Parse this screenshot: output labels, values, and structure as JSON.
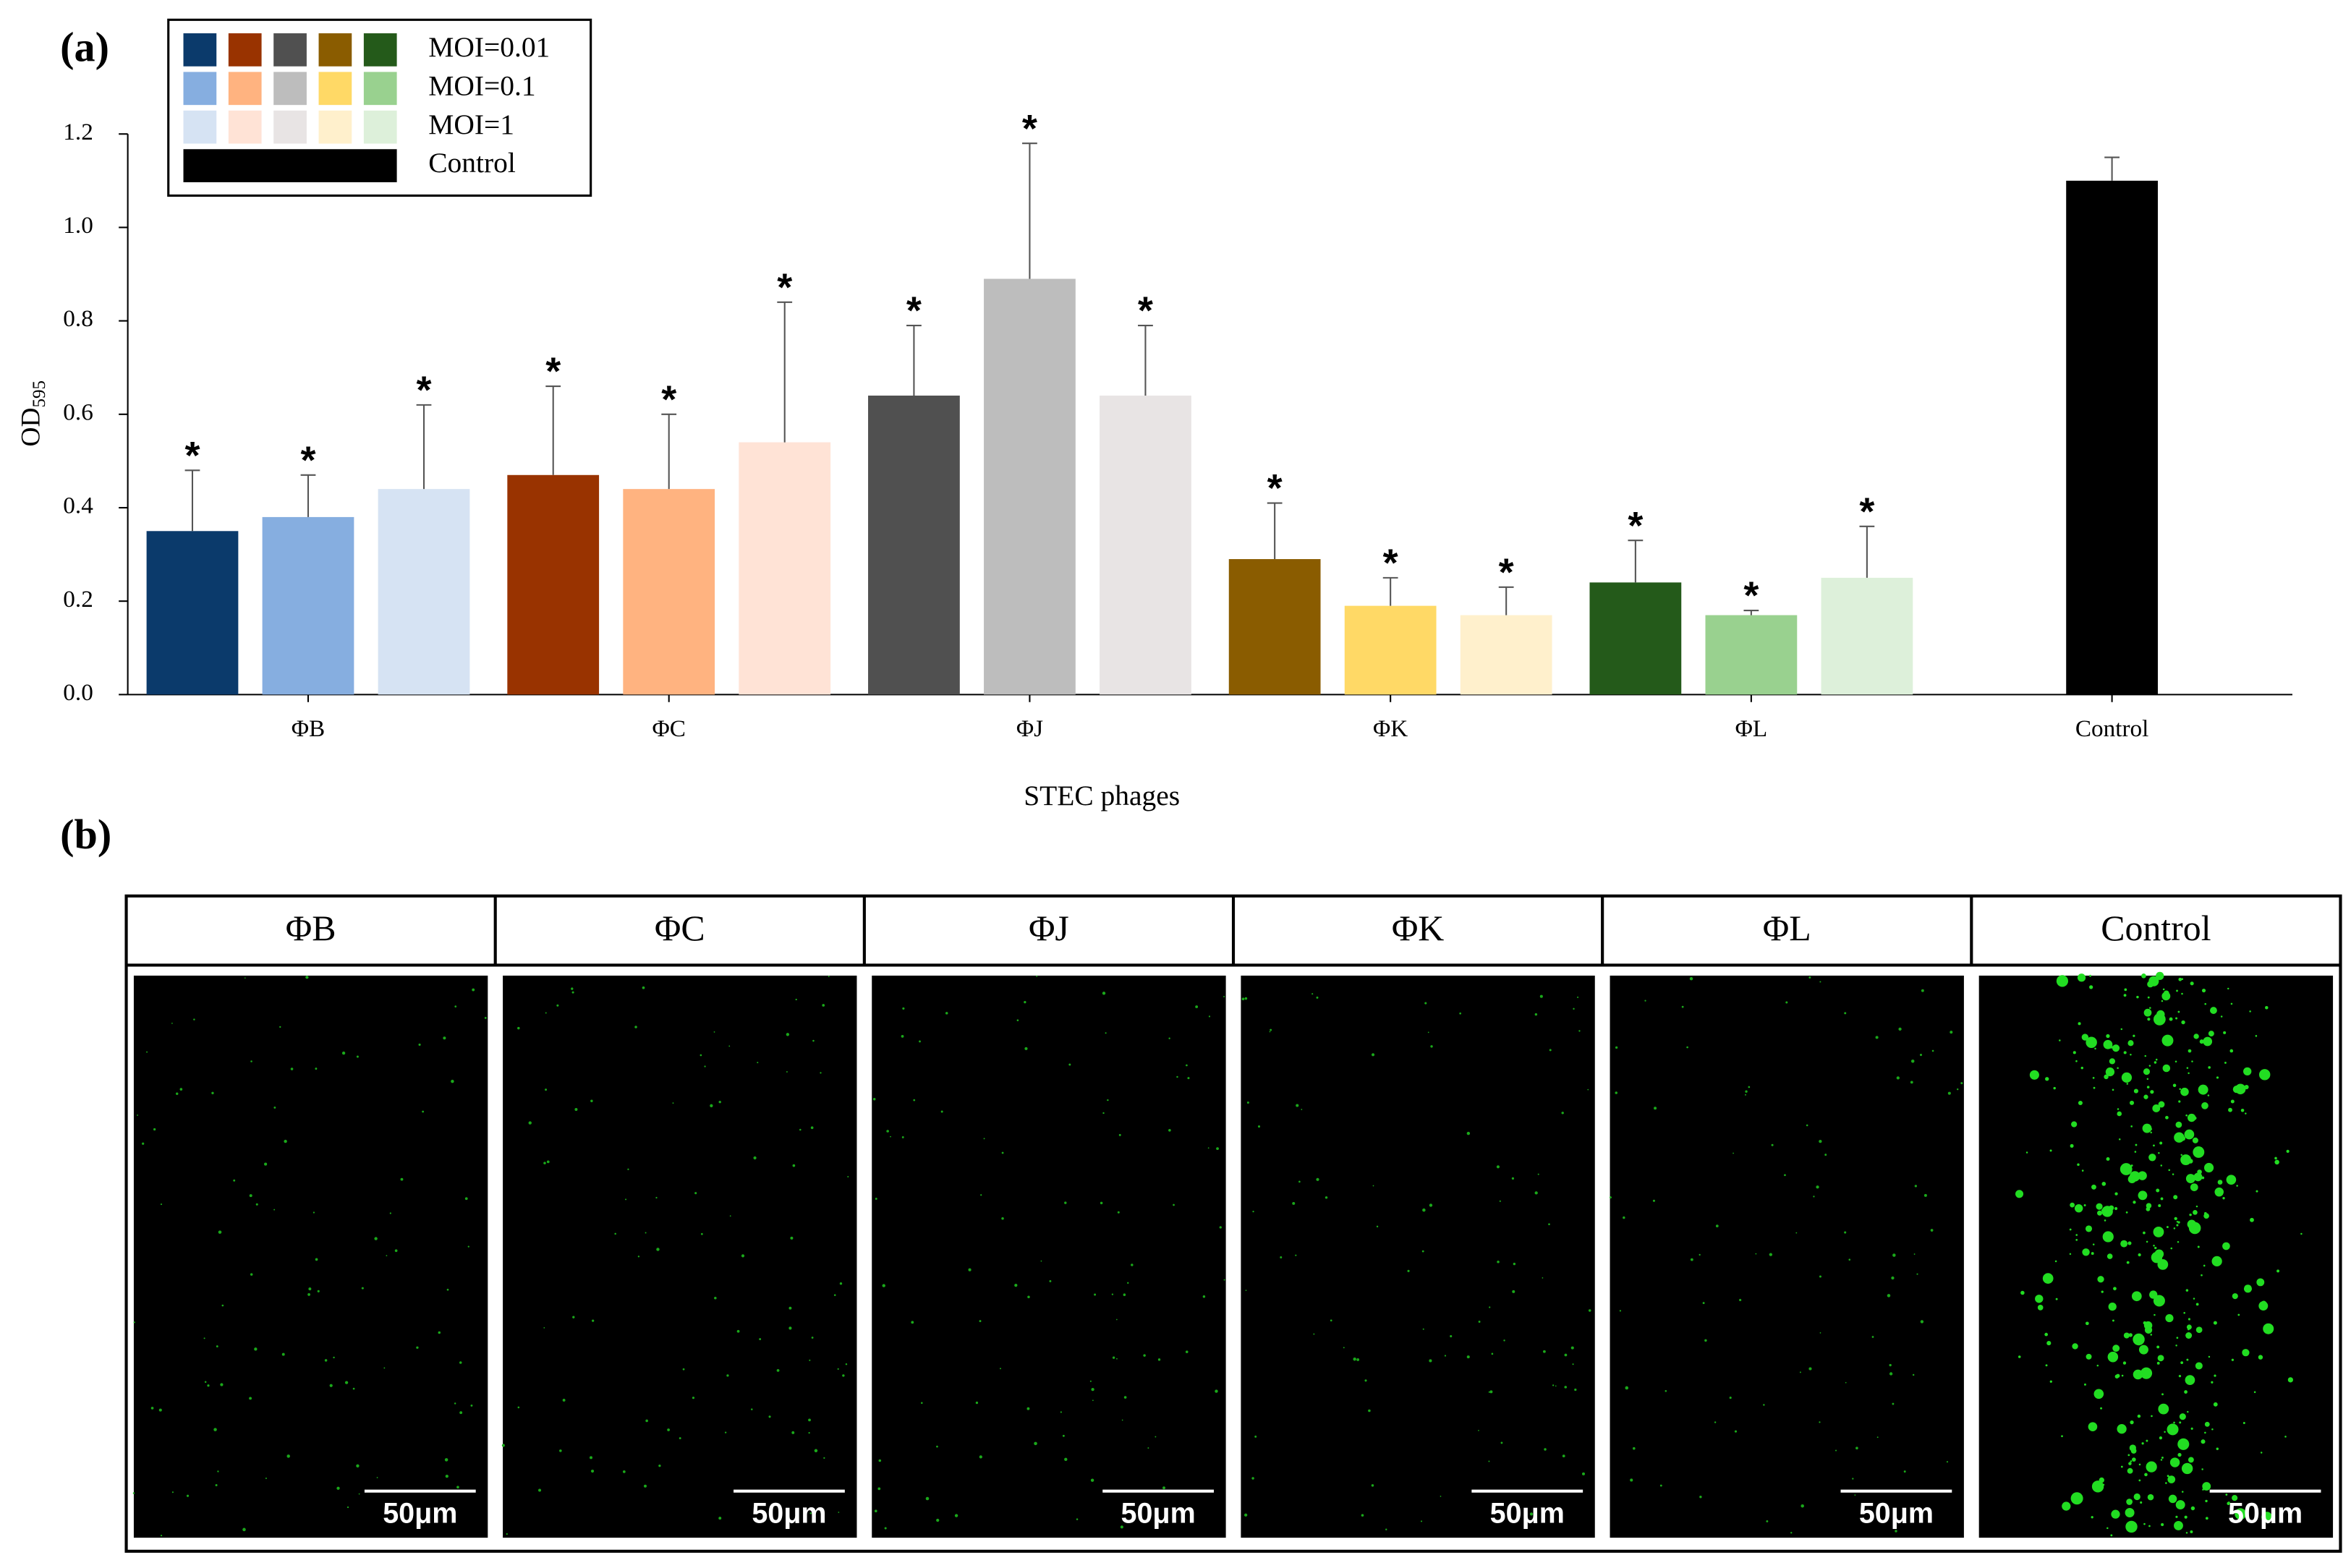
{
  "chart_data": {
    "type": "bar",
    "panel_label": "(a)",
    "ylabel": "OD",
    "ylabel_sub": "595",
    "xlabel": "STEC phages",
    "categories": [
      "ΦB",
      "ΦC",
      "ΦJ",
      "ΦK",
      "ΦL",
      "Control"
    ],
    "ylim": [
      0,
      1.2
    ],
    "yticks": [
      {
        "value": 0,
        "label": "0.0"
      },
      0.2,
      0.4,
      0.6,
      0.8,
      {
        "value": 1,
        "label": "1.0"
      },
      1.2
    ],
    "series": [
      {
        "name": "MOI=0.01",
        "colors": [
          "#0b3a6b",
          "#993300",
          "#505050",
          "#8a5c00",
          "#245a1a"
        ],
        "values": [
          0.35,
          0.47,
          0.64,
          0.29,
          0.24,
          null
        ],
        "errors": [
          0.13,
          0.19,
          0.15,
          0.12,
          0.09,
          null
        ],
        "labels": [
          "*",
          "*",
          "*",
          "*",
          "*",
          null
        ]
      },
      {
        "name": "MOI=0.1",
        "colors": [
          "#86aee0",
          "#ffb380",
          "#bdbdbd",
          "#ffd966",
          "#99d18f"
        ],
        "values": [
          0.38,
          0.44,
          0.89,
          0.19,
          0.17,
          null
        ],
        "errors": [
          0.09,
          0.16,
          0.29,
          0.06,
          0.01,
          null
        ],
        "labels": [
          "*",
          "*",
          "*",
          "*",
          "*",
          null
        ]
      },
      {
        "name": "MOI=1",
        "colors": [
          "#d6e3f3",
          "#ffe3d6",
          "#e8e4e4",
          "#fff0cc",
          "#ddf0da"
        ],
        "values": [
          0.44,
          0.54,
          0.64,
          0.17,
          0.25,
          null
        ],
        "errors": [
          0.18,
          0.3,
          0.15,
          0.06,
          0.11,
          null
        ],
        "labels": [
          "*",
          "*",
          "*",
          "*",
          "*",
          null
        ]
      },
      {
        "name": "Control",
        "colors": [
          "#000000"
        ],
        "values": [
          null,
          null,
          null,
          null,
          null,
          1.1
        ],
        "errors": [
          null,
          null,
          null,
          null,
          null,
          0.05
        ],
        "labels": [
          null,
          null,
          null,
          null,
          null,
          null
        ]
      }
    ]
  },
  "panel_b": {
    "label": "(b)",
    "columns": [
      "ΦB",
      "ΦC",
      "ΦJ",
      "ΦK",
      "ΦL",
      "Control"
    ],
    "scale_bars": [
      "50μm",
      "50μm",
      "50μm",
      "50μm",
      "50μm",
      "50μm"
    ]
  }
}
